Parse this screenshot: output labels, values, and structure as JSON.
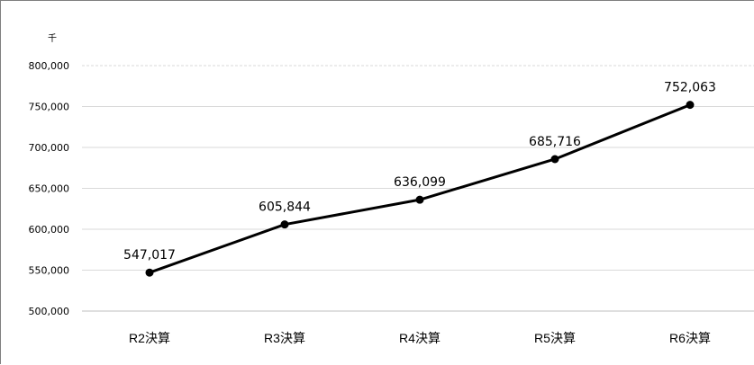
{
  "chart_data": {
    "type": "line",
    "unit_label": "千",
    "categories": [
      "R2決算",
      "R3決算",
      "R4決算",
      "R5決算",
      "R6決算"
    ],
    "values": [
      547017,
      605844,
      636099,
      685716,
      752063
    ],
    "data_labels": [
      "547,017",
      "605,844",
      "636,099",
      "685,716",
      "752,063"
    ],
    "ylim": [
      500000,
      800000
    ],
    "y_ticks": [
      500000,
      550000,
      600000,
      650000,
      700000,
      750000,
      800000
    ],
    "y_tick_labels": [
      "500,000",
      "550,000",
      "600,000",
      "650,000",
      "700,000",
      "750,000",
      "800,000"
    ],
    "grid": true,
    "line_color": "#000000",
    "grid_color": "#d9d9d9",
    "title": "",
    "xlabel": "",
    "ylabel": ""
  }
}
